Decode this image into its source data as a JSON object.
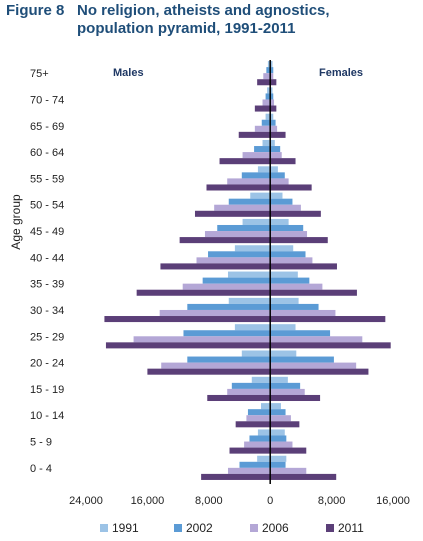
{
  "title": {
    "figure": "Figure 8",
    "line1": "No religion, atheists and agnostics,",
    "line2": "population pyramid, 1991-2011"
  },
  "chart_data": {
    "type": "bar",
    "orientation": "horizontal-pyramid",
    "ylabel": "Age group",
    "xlabel": "",
    "xlim": [
      -24000,
      16000
    ],
    "x_ticks": [
      -24000,
      -16000,
      -8000,
      0,
      8000,
      16000
    ],
    "x_tick_labels": [
      "24,000",
      "16,000",
      "8,000",
      "0",
      "8,000",
      "16,000"
    ],
    "grid": false,
    "legend_position": "bottom",
    "side_labels": {
      "left": "Males",
      "right": "Females"
    },
    "categories": [
      "0 - 4",
      "5 - 9",
      "10 - 14",
      "15 - 19",
      "20 - 24",
      "25 - 29",
      "30 - 34",
      "35 - 39",
      "40 - 44",
      "45 - 49",
      "50 - 54",
      "55 - 59",
      "60 - 64",
      "65 - 69",
      "70 - 74",
      "75+"
    ],
    "series": [
      {
        "name": "1991",
        "color": "#9cc3e6",
        "males": [
          -1700,
          -1600,
          -1200,
          -2400,
          -3700,
          -4600,
          -5400,
          -5500,
          -4600,
          -3600,
          -2600,
          -1600,
          -1000,
          -600,
          -400,
          -300
        ],
        "females": [
          2100,
          1900,
          1400,
          2300,
          3400,
          3300,
          3700,
          3600,
          3000,
          2400,
          1600,
          1000,
          600,
          400,
          300,
          300
        ]
      },
      {
        "name": "2002",
        "color": "#5b9bd5",
        "males": [
          -4000,
          -2700,
          -2900,
          -5000,
          -10800,
          -11300,
          -10800,
          -8800,
          -8100,
          -6900,
          -5400,
          -3700,
          -2100,
          -1100,
          -600,
          -500
        ],
        "females": [
          2000,
          2100,
          2000,
          3900,
          8300,
          7800,
          6300,
          5100,
          4600,
          4300,
          2900,
          1900,
          1300,
          700,
          400,
          400
        ]
      },
      {
        "name": "2006",
        "color": "#b4a7d6",
        "males": [
          -5500,
          -3400,
          -3100,
          -5600,
          -14200,
          -17800,
          -14400,
          -11400,
          -9600,
          -8500,
          -7300,
          -5600,
          -3600,
          -2000,
          -1000,
          -900
        ],
        "females": [
          4700,
          2900,
          2700,
          4500,
          11200,
          12000,
          8500,
          6800,
          5500,
          4800,
          4000,
          2400,
          1500,
          900,
          500,
          400
        ]
      },
      {
        "name": "2011",
        "color": "#5b3f78",
        "males": [
          -9000,
          -5300,
          -4500,
          -8200,
          -16000,
          -21400,
          -21600,
          -17400,
          -14300,
          -11800,
          -9800,
          -8300,
          -6600,
          -4100,
          -2000,
          -1700
        ],
        "females": [
          8600,
          4700,
          3800,
          6500,
          12800,
          15700,
          15000,
          11300,
          8700,
          7500,
          6600,
          5400,
          3300,
          2000,
          800,
          800
        ]
      }
    ]
  }
}
